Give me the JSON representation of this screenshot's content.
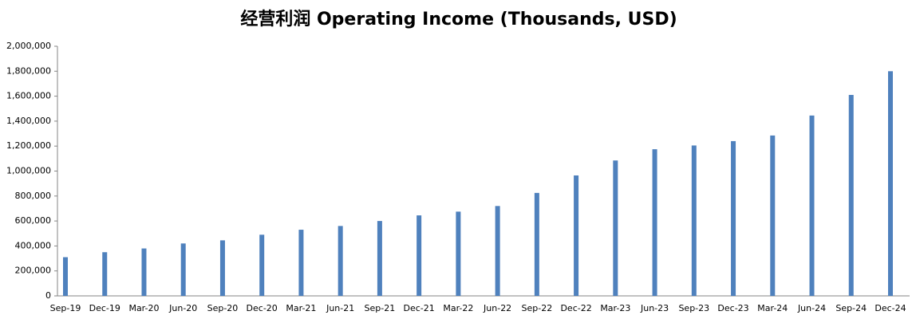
{
  "chart_data": {
    "type": "bar",
    "title": "经营利润 Operating Income (Thousands, USD)",
    "categories": [
      "Sep-19",
      "Dec-19",
      "Mar-20",
      "Jun-20",
      "Sep-20",
      "Dec-20",
      "Mar-21",
      "Jun-21",
      "Sep-21",
      "Dec-21",
      "Mar-22",
      "Jun-22",
      "Sep-22",
      "Dec-22",
      "Mar-23",
      "Jun-23",
      "Sep-23",
      "Dec-23",
      "Mar-24",
      "Jun-24",
      "Sep-24",
      "Dec-24"
    ],
    "values": [
      310000,
      350000,
      380000,
      420000,
      445000,
      490000,
      530000,
      560000,
      600000,
      645000,
      675000,
      720000,
      825000,
      965000,
      1085000,
      1175000,
      1205000,
      1240000,
      1285000,
      1445000,
      1610000,
      1800000
    ],
    "color": "#4f81bd",
    "ylim": [
      0,
      2000000
    ],
    "yticks": [
      0,
      {
        "value": 200000,
        "label": "200,000"
      },
      {
        "value": 400000,
        "label": "400,000"
      },
      {
        "value": 600000,
        "label": "600,000"
      },
      {
        "value": 800000,
        "label": "800,000"
      },
      {
        "value": 1000000,
        "label": "1,000,000"
      },
      {
        "value": 1200000,
        "label": "1,200,000"
      },
      {
        "value": 1400000,
        "label": "1,400,000"
      },
      {
        "value": 1600000,
        "label": "1,600,000"
      },
      {
        "value": 1800000,
        "label": "1,800,000"
      },
      {
        "value": 2000000,
        "label": "2,000,000"
      }
    ],
    "grid": false
  }
}
